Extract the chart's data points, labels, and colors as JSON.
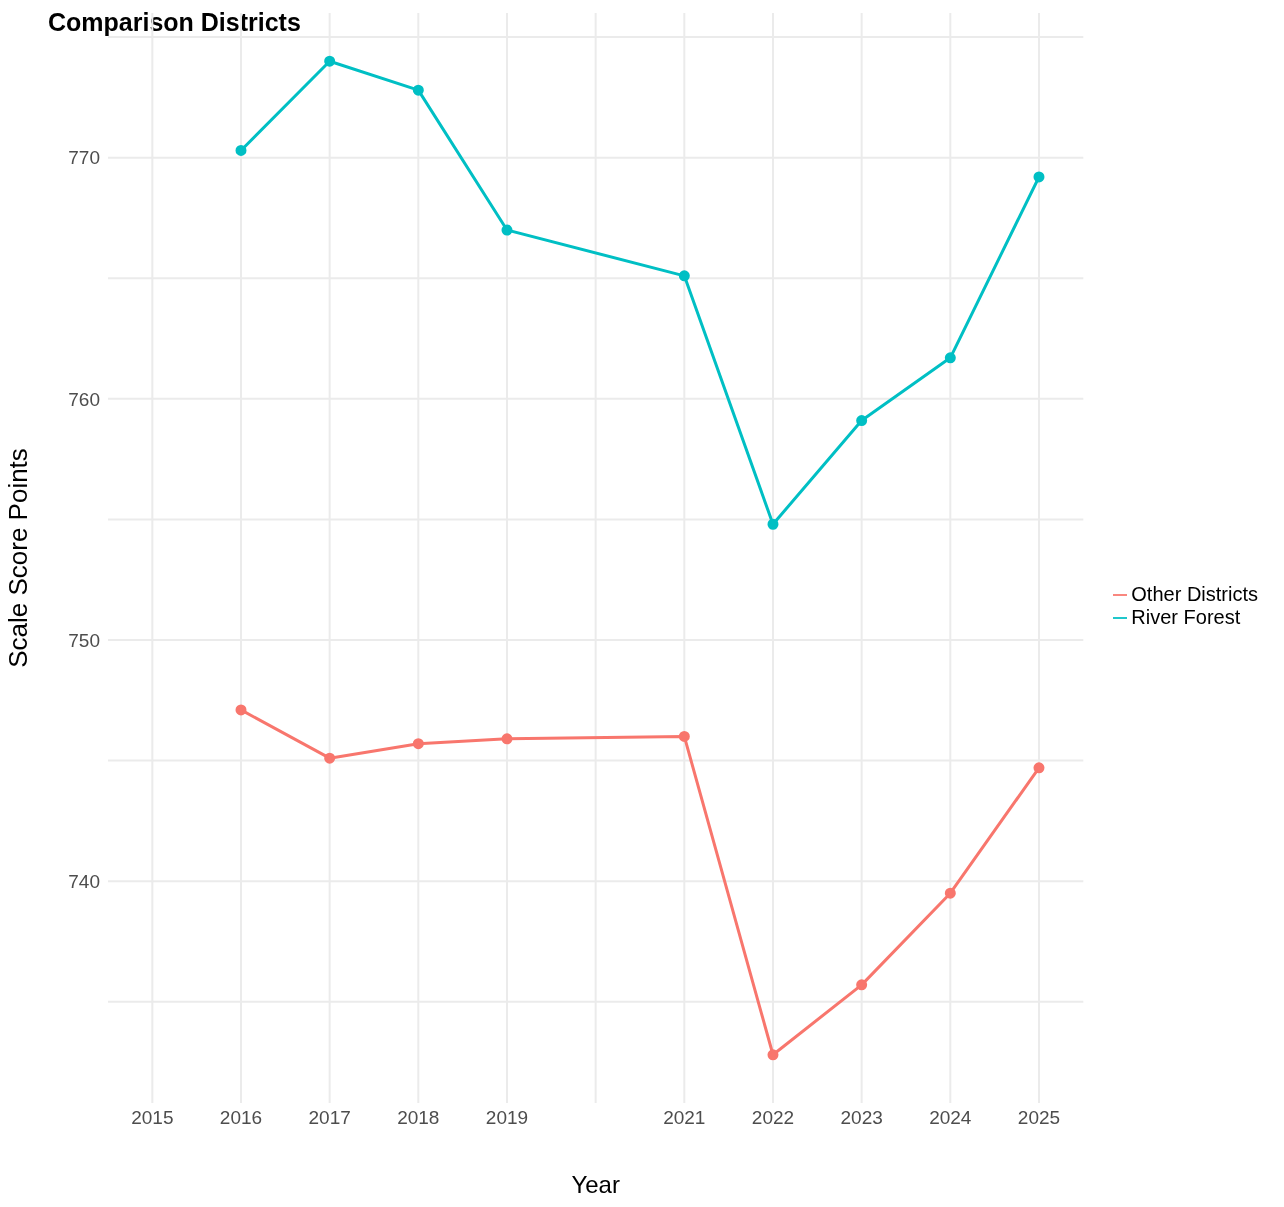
{
  "chart_data": {
    "type": "line",
    "title": "Comparison Districts",
    "xlabel": "Year",
    "ylabel": "Scale Score Points",
    "x": [
      2016,
      2017,
      2018,
      2019,
      2021,
      2022,
      2023,
      2024,
      2025
    ],
    "series": [
      {
        "name": "Other Districts",
        "color": "#f8766d",
        "values": [
          747.1,
          745.1,
          745.7,
          745.9,
          746.0,
          732.8,
          735.7,
          739.5,
          744.7
        ]
      },
      {
        "name": "River Forest",
        "color": "#00bfc4",
        "values": [
          770.3,
          774.0,
          772.8,
          767.0,
          765.1,
          754.8,
          759.1,
          761.7,
          769.2
        ]
      }
    ],
    "xlim": [
      2014.5,
      2025.5
    ],
    "xticks": [
      2015,
      2016,
      2017,
      2018,
      2019,
      {
        "value": 2020,
        "label": null
      },
      2021,
      2022,
      2023,
      2024,
      2025
    ],
    "ylim": [
      730.8,
      776
    ],
    "yticks": [
      {
        "value": 735,
        "label": null
      },
      740,
      {
        "value": 745,
        "label": null
      },
      750,
      {
        "value": 755,
        "label": null
      },
      760,
      {
        "value": 765,
        "label": null
      },
      770,
      {
        "value": 775,
        "label": null
      }
    ],
    "grid": true,
    "legend": "right",
    "marker": "circle",
    "line_style": "solid"
  }
}
